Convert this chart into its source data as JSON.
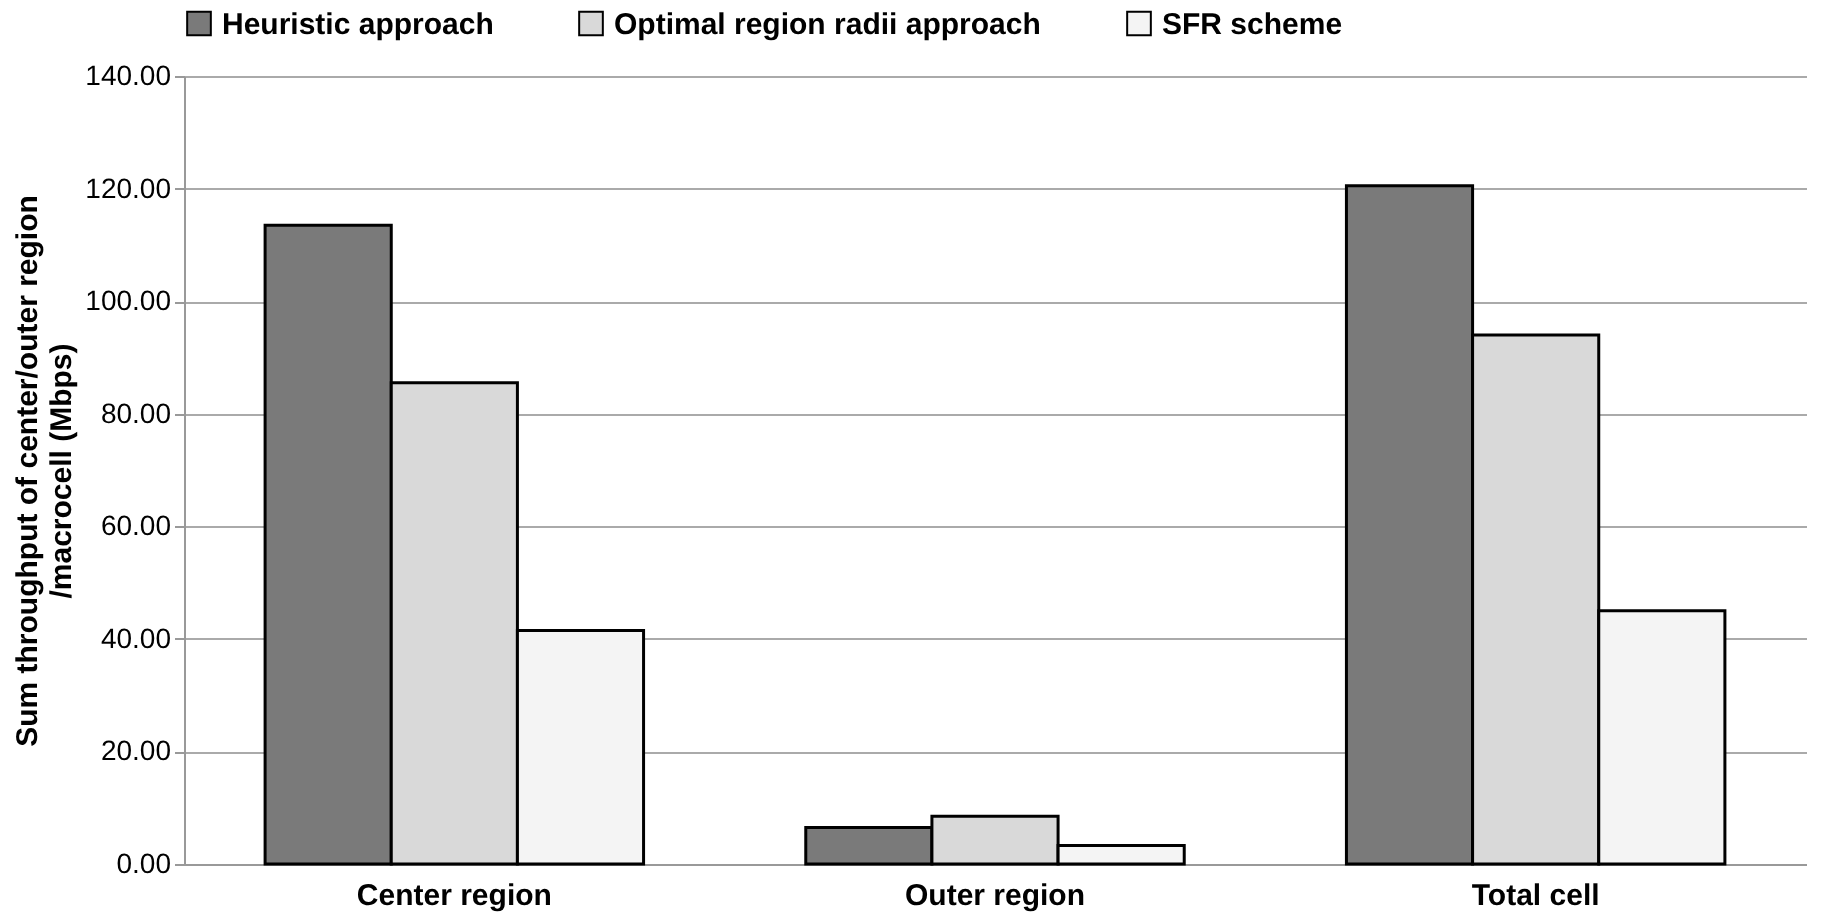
{
  "chart_data": {
    "type": "bar",
    "ylabel": "Sum throughput of center/outer region\n/macrocell (Mbps)",
    "categories": [
      "Center region",
      "Outer region",
      "Total cell"
    ],
    "series": [
      {
        "name": "Heuristic approach",
        "color": "#7a7a7a",
        "values": [
          113.5,
          6.5,
          120.5
        ]
      },
      {
        "name": "Optimal region radii approach",
        "color": "#d9d9d9",
        "values": [
          85.5,
          8.5,
          94
        ]
      },
      {
        "name": "SFR scheme",
        "color": "#f4f4f4",
        "values": [
          41.5,
          3.3,
          45
        ]
      }
    ],
    "ylim": [
      0,
      140
    ],
    "yticks": [
      {
        "value": 0,
        "label": "0.00"
      },
      {
        "value": 20,
        "label": "20.00"
      },
      {
        "value": 40,
        "label": "40.00"
      },
      {
        "value": 60,
        "label": "60.00"
      },
      {
        "value": 80,
        "label": "80.00"
      },
      {
        "value": 100,
        "label": "100.00"
      },
      {
        "value": 120,
        "label": "120.00"
      },
      {
        "value": 140,
        "label": "140.00"
      }
    ],
    "grid": "y",
    "legend": "top"
  }
}
